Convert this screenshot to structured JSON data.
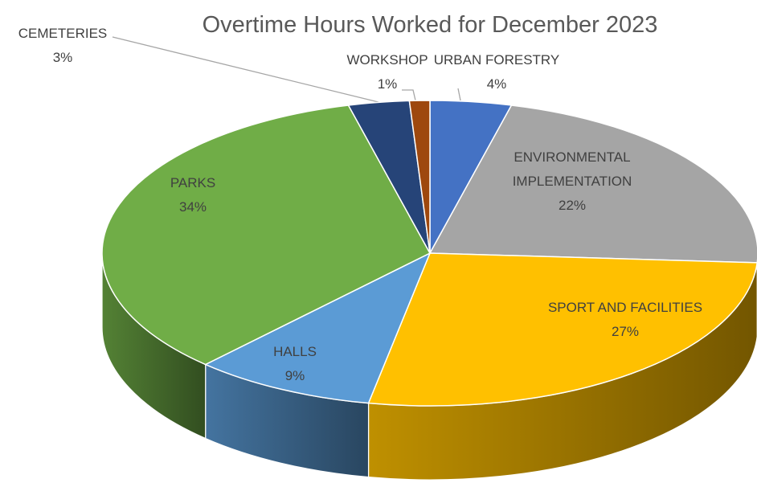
{
  "chart_data": {
    "type": "pie",
    "title": "Overtime Hours Worked for December 2023",
    "categories": [
      "URBAN FORESTRY",
      "ENVIRONMENTAL IMPLEMENTATION",
      "SPORT AND FACILITIES",
      "HALLS",
      "PARKS",
      "CEMETERIES",
      "WORKSHOP"
    ],
    "values": [
      4,
      22,
      27,
      9,
      34,
      3,
      1
    ],
    "value_labels": [
      "4%",
      "22%",
      "27%",
      "9%",
      "34%",
      "3%",
      "1%"
    ],
    "colors": [
      "#4472c4",
      "#a5a5a5",
      "#ffc000",
      "#5b9bd5",
      "#70ad47",
      "#264478",
      "#9e480e"
    ]
  }
}
